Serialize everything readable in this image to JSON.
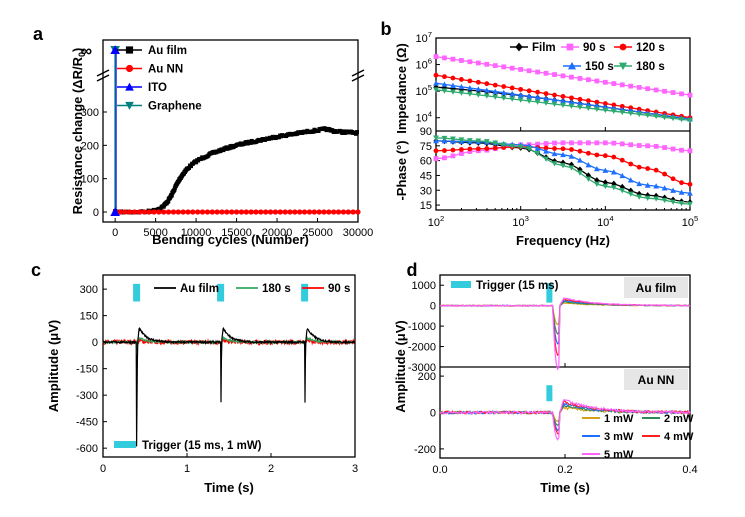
{
  "panels": [
    "a",
    "b",
    "c",
    "d"
  ],
  "chart_data": [
    {
      "id": "a",
      "type": "line",
      "xlabel": "Bending cycles (Number)",
      "ylabel": "Resistance change (ΔR/R",
      "ylabel_sub": "0",
      "ylabel_end": ")",
      "xlim": [
        -1500,
        30000
      ],
      "ylim": [
        -15,
        380
      ],
      "xticks": [
        0,
        5000,
        10000,
        15000,
        20000,
        25000,
        30000
      ],
      "yticks": [
        0,
        100,
        200,
        300
      ],
      "infinity_label": "∞",
      "legend_position": "top-left",
      "colors": {
        "au_film": "#000000",
        "au_nn": "#ff0000",
        "ito": "#0000ff",
        "graphene": "#008080"
      },
      "series": [
        {
          "name": "Au film",
          "color": "#000000",
          "marker": "square",
          "x": [
            0,
            2000,
            4000,
            5000,
            6000,
            6500,
            7000,
            7500,
            8000,
            8500,
            9000,
            10000,
            11000,
            12000,
            13000,
            14000,
            15000,
            16000,
            17000,
            18000,
            19000,
            20000,
            21000,
            22000,
            23000,
            24000,
            25000,
            26000,
            27000,
            28000,
            29000,
            30000
          ],
          "y": [
            0,
            0,
            1,
            5,
            18,
            32,
            52,
            78,
            100,
            118,
            132,
            152,
            165,
            176,
            185,
            193,
            200,
            206,
            211,
            216,
            221,
            226,
            230,
            234,
            238,
            242,
            245,
            249,
            243,
            240,
            239,
            237
          ]
        },
        {
          "name": "Au NN",
          "color": "#ff0000",
          "marker": "circle",
          "x": [
            0,
            5000,
            10000,
            15000,
            20000,
            25000,
            30000
          ],
          "y": [
            0,
            0,
            0,
            0,
            0,
            0,
            0
          ]
        },
        {
          "name": "ITO",
          "color": "#0000ff",
          "marker": "triangle-up",
          "x": [
            0
          ],
          "y": [
            0
          ]
        },
        {
          "name": "Graphene",
          "color": "#008080",
          "marker": "triangle-down",
          "x": [
            0
          ],
          "y": [
            0
          ]
        }
      ]
    },
    {
      "id": "b",
      "type": "line",
      "xlabel": "Frequency (Hz)",
      "xscale": "log",
      "xlim": [
        100,
        100000
      ],
      "xticks": [
        "10^2",
        "10^3",
        "10^4",
        "10^5"
      ],
      "legend_position": "top",
      "top": {
        "ylabel": "Impedance (Ω)",
        "yscale": "log",
        "ylim_exp": [
          3.5,
          7
        ],
        "yticks": [
          "10^4",
          "10^5",
          "10^6",
          "10^7"
        ]
      },
      "bottom": {
        "ylabel": "-Phase (°)",
        "ylim": [
          10,
          90
        ],
        "yticks": [
          15,
          30,
          45,
          60,
          75,
          90
        ]
      },
      "series": [
        {
          "name": "Film",
          "color": "#000000",
          "marker": "diamond",
          "logZ": [
            5.15,
            3.95
          ],
          "phase": [
            80,
            78,
            73,
            58,
            38,
            25,
            18
          ]
        },
        {
          "name": "90 s",
          "color": "#ff66ff",
          "marker": "square",
          "logZ": [
            6.3,
            4.85
          ],
          "phase": [
            62,
            70,
            76,
            78,
            78,
            75,
            70
          ]
        },
        {
          "name": "120 s",
          "color": "#ff0000",
          "marker": "circle",
          "logZ": [
            5.6,
            4.0
          ],
          "phase": [
            70,
            72,
            74,
            72,
            65,
            52,
            36
          ]
        },
        {
          "name": "150 s",
          "color": "#1e6fff",
          "marker": "triangle-up",
          "logZ": [
            5.3,
            3.95
          ],
          "phase": [
            80,
            79,
            76,
            66,
            50,
            35,
            27
          ]
        },
        {
          "name": "180 s",
          "color": "#2eaa6e",
          "marker": "triangle-down",
          "logZ": [
            5.05,
            3.9
          ],
          "phase": [
            83,
            80,
            74,
            55,
            34,
            22,
            16
          ]
        }
      ]
    },
    {
      "id": "c",
      "type": "line",
      "xlabel": "Time (s)",
      "ylabel": "Amplitude (μV)",
      "xlim": [
        0,
        3
      ],
      "ylim": [
        -650,
        380
      ],
      "xticks": [
        0,
        1,
        2,
        3
      ],
      "yticks": [
        300,
        150,
        0,
        -150,
        -300,
        -450,
        -600
      ],
      "ytick_labels": [
        "300",
        "150",
        "0",
        "-150",
        "-300",
        "-450",
        "-600"
      ],
      "pulse_times": [
        0.4,
        1.4,
        2.4
      ],
      "trigger_legend": "Trigger (15 ms, 1 mW)",
      "trigger_color": "#33ccdd",
      "series": [
        {
          "name": "Au film",
          "color": "#000000",
          "dip": -590,
          "peak": 80
        },
        {
          "name": "180 s",
          "color": "#33a860",
          "dip": -45,
          "peak": 25
        },
        {
          "name": "90 s",
          "color": "#ff0000",
          "dip": -20,
          "peak": 8
        }
      ]
    },
    {
      "id": "d",
      "type": "line",
      "xlabel": "Time (s)",
      "ylabel": "Amplitude (μV)",
      "xlim": [
        0,
        0.4
      ],
      "xticks": [
        0.0,
        0.2,
        0.4
      ],
      "xtick_labels": [
        "0.0",
        "0.2",
        "0.4"
      ],
      "trigger_legend": "Trigger (15 ms)",
      "trigger_color": "#33ccdd",
      "pulse_time": 0.175,
      "top": {
        "label": "Au film",
        "ylim": [
          -3000,
          1500
        ],
        "yticks": [
          1000,
          0,
          -1000,
          -2000,
          -3000
        ],
        "ytick_labels": [
          "1000",
          "0",
          "-1000",
          "-2000",
          "-3000"
        ],
        "dips": [
          -800,
          -1200,
          -1600,
          -2100,
          -2700
        ]
      },
      "bottom": {
        "label": "Au NN",
        "ylim": [
          -250,
          250
        ],
        "yticks": [
          200,
          0,
          -200
        ],
        "ytick_labels": [
          "200",
          "0",
          "-200"
        ],
        "dips": [
          -40,
          -60,
          -80,
          -100,
          -130
        ]
      },
      "series": [
        {
          "name": "1 mW",
          "color": "#d4a017"
        },
        {
          "name": "2 mW",
          "color": "#2e8b57"
        },
        {
          "name": "3 mW",
          "color": "#1e6fff"
        },
        {
          "name": "4 mW",
          "color": "#ff2020"
        },
        {
          "name": "5 mW",
          "color": "#ff66ff"
        }
      ]
    }
  ]
}
